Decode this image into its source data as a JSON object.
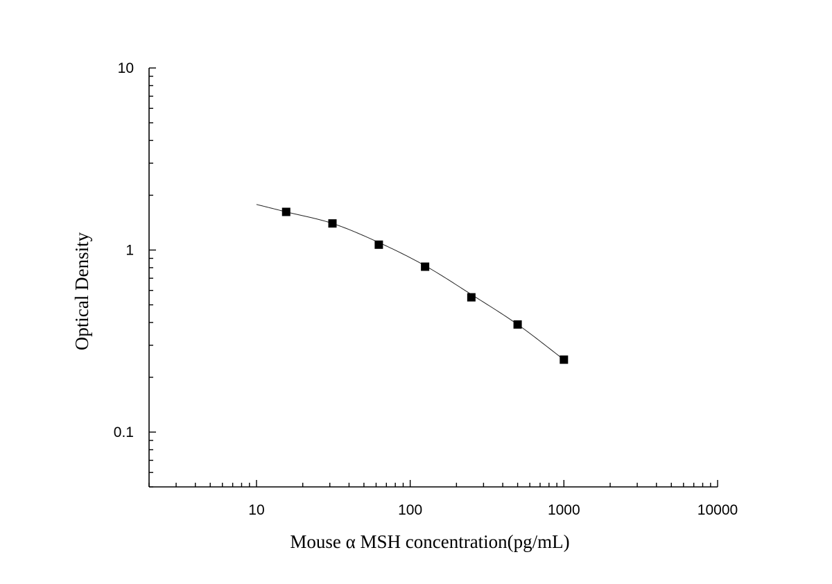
{
  "chart_data": {
    "type": "scatter",
    "xlabel": "Mouse α MSH concentration(pg/mL)",
    "ylabel": "Optical Density",
    "xscale": "log",
    "yscale": "log",
    "xlim": [
      2,
      10000
    ],
    "ylim": [
      0.05,
      10
    ],
    "xticks": [
      "10",
      "100",
      "1000",
      "10000"
    ],
    "yticks": [
      "0.1",
      "1",
      "10"
    ],
    "grid": false,
    "series": [
      {
        "marker": "square",
        "color": "#000000",
        "x": [
          15.6,
          31.2,
          62.5,
          125,
          250,
          500,
          1000
        ],
        "y": [
          1.62,
          1.4,
          1.07,
          0.81,
          0.55,
          0.39,
          0.25
        ]
      }
    ],
    "fit_curve": {
      "color": "#222222",
      "x": [
        10,
        15.6,
        31.2,
        62.5,
        125,
        250,
        500,
        1000
      ],
      "y": [
        1.78,
        1.62,
        1.4,
        1.1,
        0.82,
        0.57,
        0.39,
        0.25
      ]
    }
  }
}
